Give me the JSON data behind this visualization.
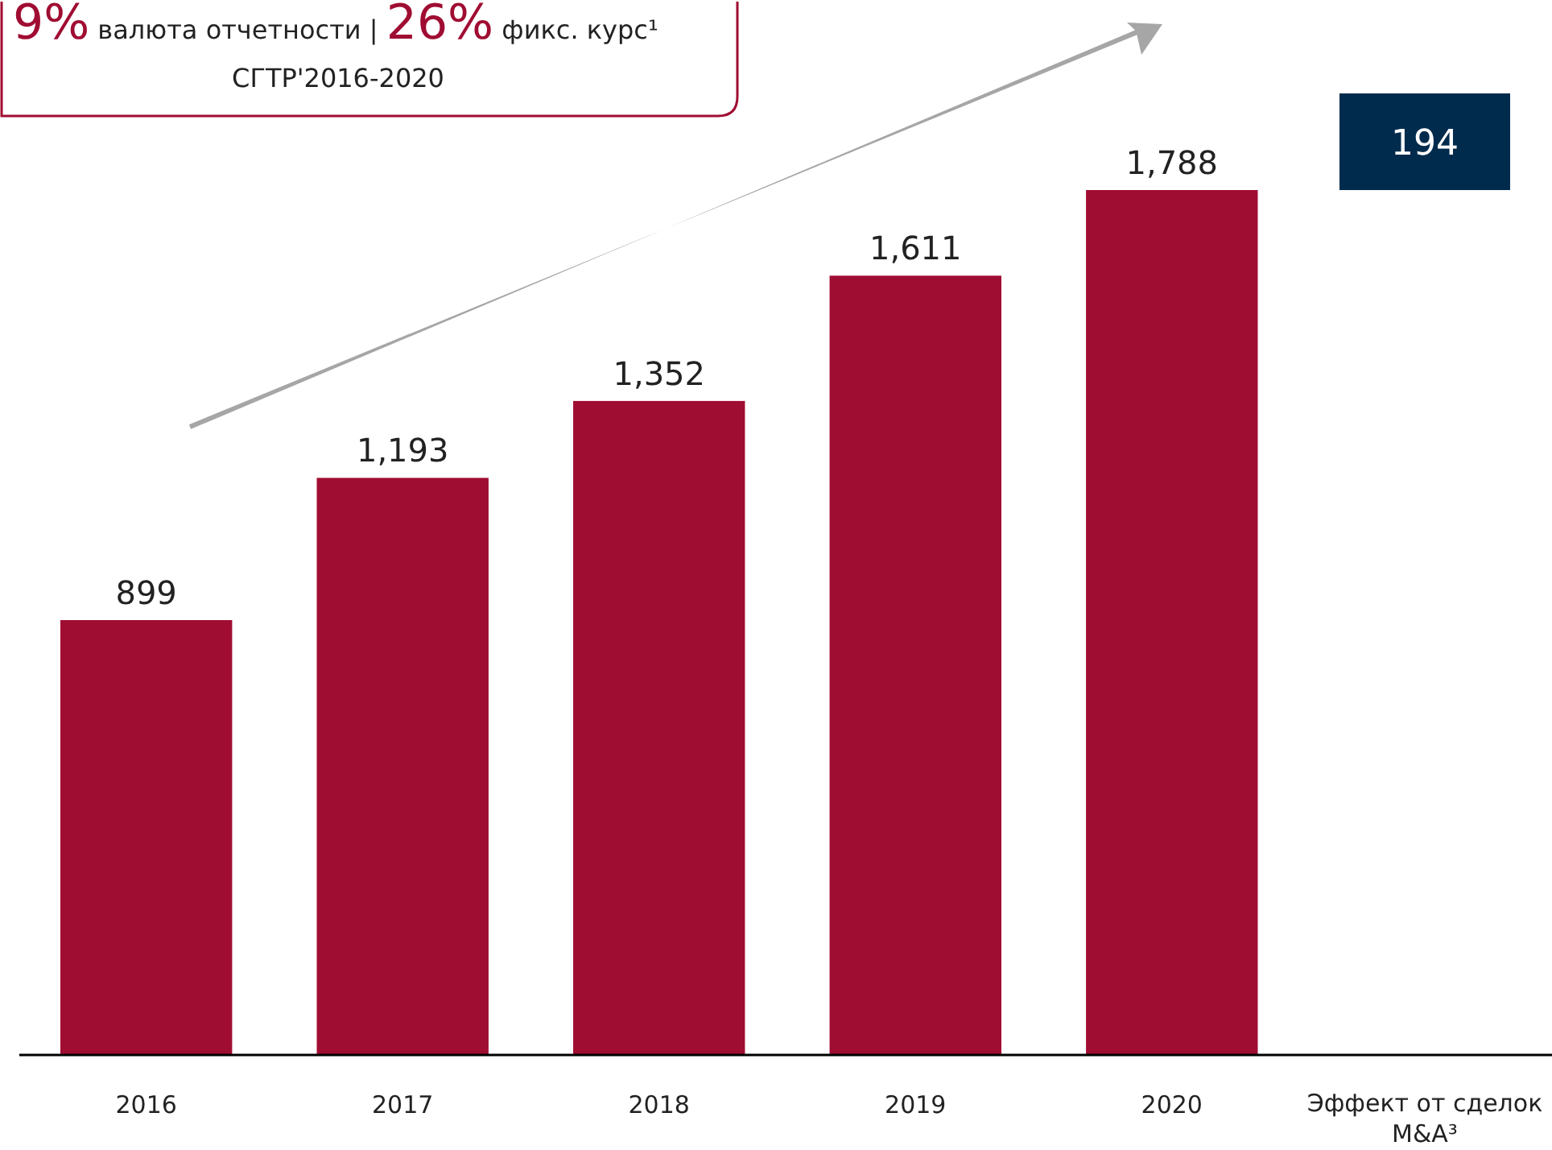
{
  "chart_data": {
    "type": "bar",
    "title": "9% валюта отчетности | 26% фикс. курс¹",
    "subtitle": "CГТР'2016-2020",
    "categories": [
      "2016",
      "2017",
      "2018",
      "2019",
      "2020",
      "Эффект от сделок M&A³"
    ],
    "values": [
      899,
      1193,
      1352,
      1611,
      1788,
      null
    ],
    "color": "#a00d32",
    "value_labels": [
      "899",
      "1,193",
      "1,352",
      "1,611",
      "1,788",
      null
    ],
    "annotations": [
      "194"
    ]
  }
}
